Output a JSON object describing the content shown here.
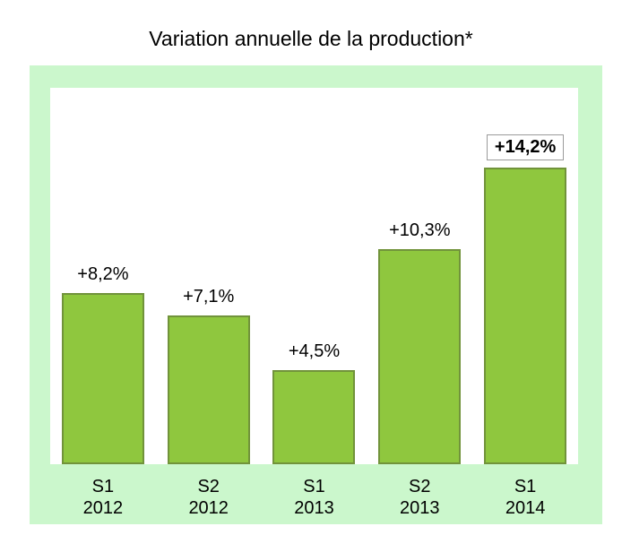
{
  "page": {
    "title": "Variation annuelle de la production*"
  },
  "chart_data": {
    "type": "bar",
    "title": "Variation annuelle de la production*",
    "xlabel": "",
    "ylabel": "",
    "unit": "%",
    "categories": [
      [
        "S1",
        "2012"
      ],
      [
        "S2",
        "2012"
      ],
      [
        "S1",
        "2013"
      ],
      [
        "S2",
        "2013"
      ],
      [
        "S1",
        "2014"
      ]
    ],
    "values": [
      8.2,
      7.1,
      4.5,
      10.3,
      14.2
    ],
    "display_labels": [
      "+8,2%",
      "+7,1%",
      "+4,5%",
      "+10,3%",
      "+14,2%"
    ],
    "highlighted_index": 4,
    "highlighted_label_boxed": true,
    "ylim": [
      0,
      18
    ],
    "grid": false,
    "legend": false,
    "colors": {
      "bar_fill": "#8fc73e",
      "bar_border": "#71933b",
      "frame_background": "#cbf7cc",
      "plot_background": "#ffffff",
      "boxed_label_border": "#9b9b9b",
      "text": "#000000"
    }
  }
}
